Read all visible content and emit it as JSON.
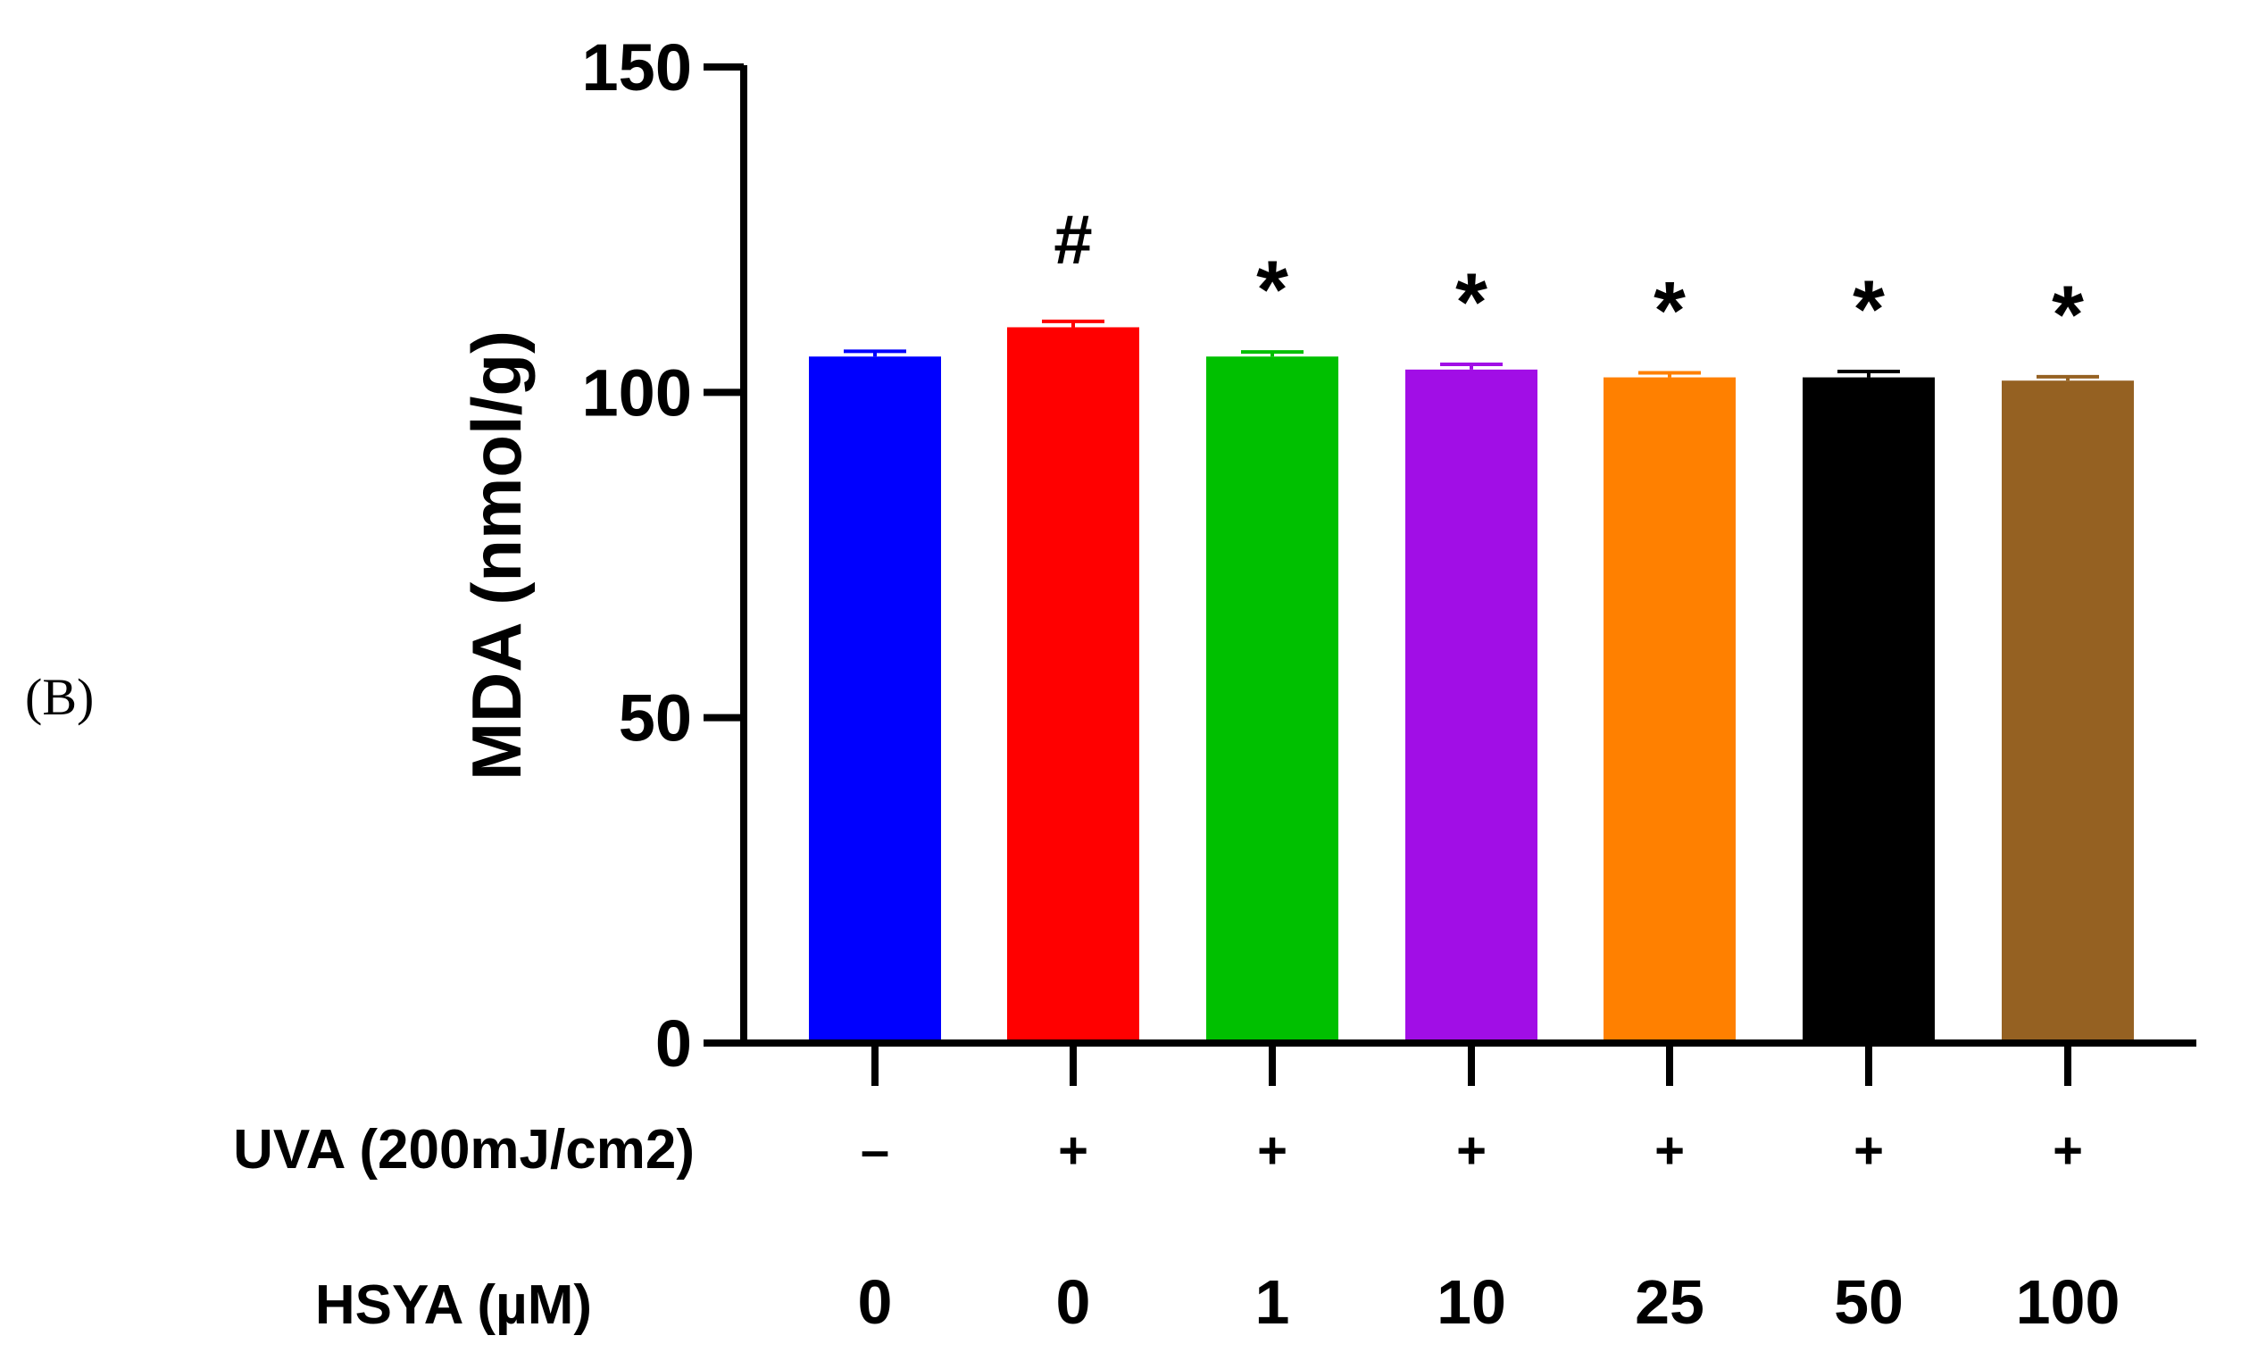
{
  "panel_label": "(B)",
  "chart_data": {
    "type": "bar",
    "title": "",
    "xlabel": "",
    "ylabel": "MDA (nmol/g)",
    "ylim": [
      0,
      150
    ],
    "yticks": [
      "0",
      "50",
      "100",
      "150"
    ],
    "categories": [
      "0",
      "0",
      "1",
      "10",
      "25",
      "50",
      "100"
    ],
    "values": [
      105.5,
      110,
      105.5,
      103.5,
      102.3,
      102.3,
      101.8
    ],
    "errors": [
      0.8,
      0.9,
      0.7,
      0.8,
      0.7,
      0.9,
      0.6
    ],
    "colors": [
      "#0000ff",
      "#ff0000",
      "#00c000",
      "#a10ee6",
      "#ff8000",
      "#000000",
      "#956122"
    ],
    "annotations": [
      "",
      "#",
      "*",
      "*",
      "*",
      "*",
      "*"
    ],
    "row_labels": [
      {
        "label": "UVA (200mJ/cm2)",
        "values": [
          "–",
          "+",
          "+",
          "+",
          "+",
          "+",
          "+"
        ]
      },
      {
        "label": "HSYA (µM)",
        "values": [
          "0",
          "0",
          "1",
          "10",
          "25",
          "50",
          "100"
        ]
      }
    ]
  }
}
